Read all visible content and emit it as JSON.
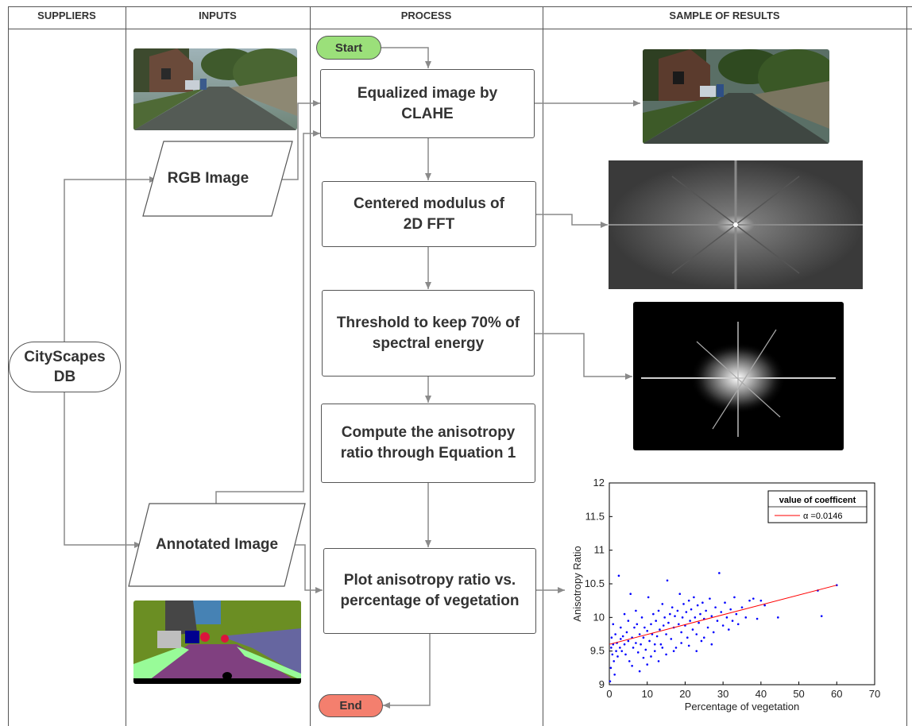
{
  "columns": [
    "SUPPLIERS",
    "INPUTS",
    "PROCESS",
    "SAMPLE OF RESULTS"
  ],
  "supplier": {
    "line1": "CityScapes",
    "line2": "DB"
  },
  "inputs": {
    "rgb_label": "RGB Image",
    "annotated_label": "Annotated Image"
  },
  "process": {
    "start": "Start",
    "end": "End",
    "steps": [
      {
        "line1": "Equalized image by",
        "line2": "CLAHE"
      },
      {
        "line1": "Centered modulus of",
        "line2": "2D FFT"
      },
      {
        "line1": "Threshold to keep 70% of",
        "line2": "spectral energy"
      },
      {
        "line1": "Compute the anisotropy",
        "line2": "ratio through Equation 1"
      },
      {
        "line1": "Plot anisotropy ratio vs.",
        "line2": "percentage of vegetation"
      }
    ]
  },
  "colors": {
    "start_fill": "#9be07a",
    "end_fill": "#f47f6e",
    "line": "#8a8a8a",
    "scatter_points": "#0000ff",
    "fit_line": "#ff0000"
  },
  "chart_data": {
    "type": "scatter",
    "xlabel": "Percentage of vegetation",
    "ylabel": "Anisotropy Ratio",
    "xlim": [
      0,
      70
    ],
    "ylim": [
      9,
      12
    ],
    "xticks": [
      0,
      10,
      20,
      30,
      40,
      50,
      60,
      70
    ],
    "yticks": [
      9,
      9.5,
      10,
      10.5,
      11,
      11.5,
      12
    ],
    "legend_title": "value of coefficent",
    "legend_entry": "α =0.0146",
    "legend_position": "top-right",
    "fit_line": {
      "x": [
        0,
        60
      ],
      "y": [
        9.6,
        10.48
      ]
    },
    "points": [
      [
        0.2,
        9.05
      ],
      [
        0.4,
        9.25
      ],
      [
        0.5,
        9.55
      ],
      [
        0.6,
        9.7
      ],
      [
        0.8,
        9.45
      ],
      [
        1,
        9.6
      ],
      [
        1.2,
        9.35
      ],
      [
        1.4,
        9.15
      ],
      [
        1.6,
        9.75
      ],
      [
        1.8,
        9.5
      ],
      [
        2,
        9.62
      ],
      [
        2.2,
        9.42
      ],
      [
        2.5,
        10.62
      ],
      [
        2.8,
        9.55
      ],
      [
        3,
        9.68
      ],
      [
        3.3,
        9.5
      ],
      [
        3.6,
        9.72
      ],
      [
        4,
        9.6
      ],
      [
        4.3,
        9.45
      ],
      [
        4.6,
        9.78
      ],
      [
        5,
        9.65
      ],
      [
        5.3,
        9.35
      ],
      [
        5.6,
        10.35
      ],
      [
        6,
        9.7
      ],
      [
        6.3,
        9.55
      ],
      [
        6.6,
        9.85
      ],
      [
        7,
        9.62
      ],
      [
        7.3,
        9.9
      ],
      [
        7.6,
        9.48
      ],
      [
        8,
        9.75
      ],
      [
        8.3,
        9.6
      ],
      [
        8.6,
        10.0
      ],
      [
        9,
        9.7
      ],
      [
        9.3,
        9.85
      ],
      [
        9.6,
        9.52
      ],
      [
        10,
        9.8
      ],
      [
        10.3,
        10.3
      ],
      [
        10.6,
        9.65
      ],
      [
        11,
        9.9
      ],
      [
        11.3,
        9.75
      ],
      [
        11.6,
        10.05
      ],
      [
        12,
        9.6
      ],
      [
        12.3,
        9.95
      ],
      [
        12.6,
        9.72
      ],
      [
        13,
        10.1
      ],
      [
        13.3,
        9.82
      ],
      [
        13.6,
        9.6
      ],
      [
        14,
        10.2
      ],
      [
        14.3,
        9.88
      ],
      [
        14.6,
        10.0
      ],
      [
        15,
        9.75
      ],
      [
        15.3,
        10.55
      ],
      [
        15.6,
        9.92
      ],
      [
        16,
        10.05
      ],
      [
        16.3,
        9.68
      ],
      [
        16.6,
        10.15
      ],
      [
        17,
        9.85
      ],
      [
        17.3,
        10.02
      ],
      [
        17.6,
        9.55
      ],
      [
        18,
        10.1
      ],
      [
        18.3,
        9.9
      ],
      [
        18.6,
        10.35
      ],
      [
        19,
        9.78
      ],
      [
        19.3,
        10.0
      ],
      [
        19.6,
        10.2
      ],
      [
        20,
        9.88
      ],
      [
        20.3,
        10.08
      ],
      [
        20.6,
        9.7
      ],
      [
        21,
        10.25
      ],
      [
        21.3,
        9.95
      ],
      [
        21.6,
        10.12
      ],
      [
        22,
        9.82
      ],
      [
        22.3,
        10.3
      ],
      [
        22.6,
        10.0
      ],
      [
        23,
        9.75
      ],
      [
        23.3,
        10.18
      ],
      [
        23.6,
        9.92
      ],
      [
        24,
        10.05
      ],
      [
        24.3,
        9.65
      ],
      [
        24.6,
        10.22
      ],
      [
        25,
        9.98
      ],
      [
        25.5,
        10.1
      ],
      [
        26,
        9.85
      ],
      [
        26.5,
        10.28
      ],
      [
        27,
        10.02
      ],
      [
        27.5,
        9.78
      ],
      [
        28,
        10.15
      ],
      [
        28.5,
        9.95
      ],
      [
        29,
        10.66
      ],
      [
        29.5,
        10.08
      ],
      [
        30,
        9.88
      ],
      [
        30.5,
        10.22
      ],
      [
        31,
        10.0
      ],
      [
        31.5,
        9.82
      ],
      [
        32,
        10.12
      ],
      [
        32.5,
        9.95
      ],
      [
        33,
        10.3
      ],
      [
        33.5,
        10.05
      ],
      [
        34,
        9.9
      ],
      [
        35,
        10.15
      ],
      [
        36,
        10.0
      ],
      [
        37,
        10.25
      ],
      [
        38,
        10.28
      ],
      [
        39,
        9.98
      ],
      [
        40,
        10.25
      ],
      [
        41,
        10.18
      ],
      [
        44.5,
        10.0
      ],
      [
        55,
        10.4
      ],
      [
        56,
        10.02
      ],
      [
        60,
        10.48
      ],
      [
        3,
        9.85
      ],
      [
        5,
        9.95
      ],
      [
        7,
        10.1
      ],
      [
        9,
        9.4
      ],
      [
        11,
        9.42
      ],
      [
        13,
        9.35
      ],
      [
        15,
        9.45
      ],
      [
        17,
        9.5
      ],
      [
        19,
        9.62
      ],
      [
        21,
        9.58
      ],
      [
        23,
        9.5
      ],
      [
        25,
        9.7
      ],
      [
        27,
        9.6
      ],
      [
        1,
        9.9
      ],
      [
        4,
        10.05
      ],
      [
        6,
        9.28
      ],
      [
        8,
        9.2
      ],
      [
        10,
        9.3
      ],
      [
        12,
        9.5
      ],
      [
        14,
        9.55
      ]
    ]
  }
}
